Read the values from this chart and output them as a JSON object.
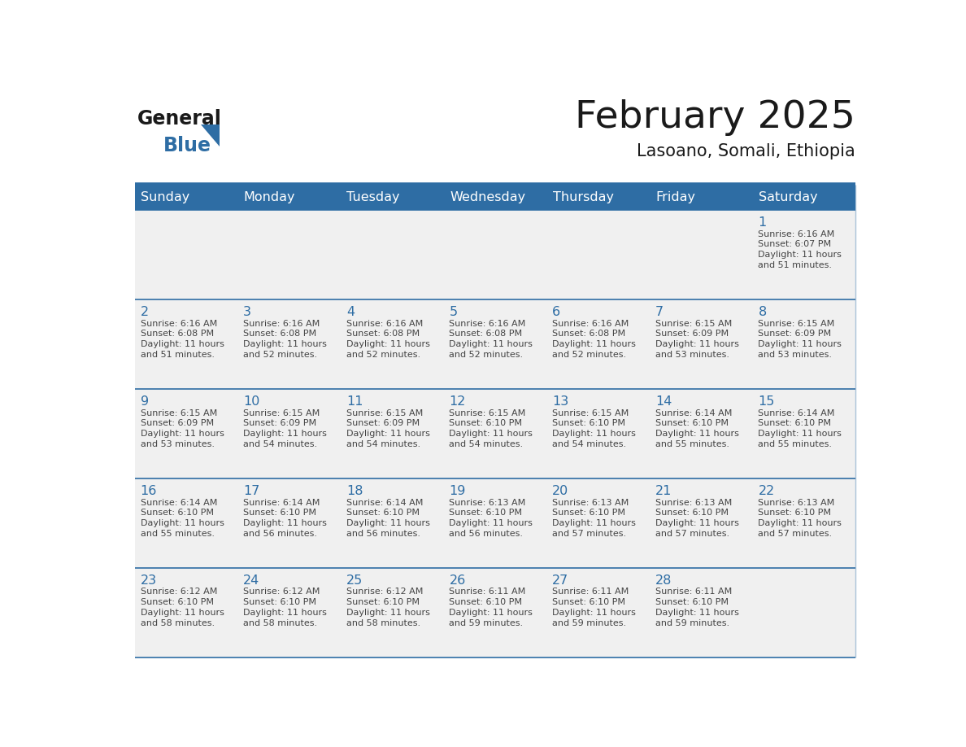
{
  "title": "February 2025",
  "subtitle": "Lasoano, Somali, Ethiopia",
  "days_of_week": [
    "Sunday",
    "Monday",
    "Tuesday",
    "Wednesday",
    "Thursday",
    "Friday",
    "Saturday"
  ],
  "header_bg_color": "#2E6DA4",
  "header_text_color": "#FFFFFF",
  "cell_bg_color": "#F0F0F0",
  "border_color": "#2E6DA4",
  "title_color": "#1a1a1a",
  "subtitle_color": "#1a1a1a",
  "day_num_color": "#2E6DA4",
  "cell_text_color": "#444444",
  "logo_text1_color": "#1a1a1a",
  "logo_text2_color": "#2E6DA4",
  "logo_triangle_color": "#2E6DA4",
  "calendar": [
    [
      null,
      null,
      null,
      null,
      null,
      null,
      {
        "day": 1,
        "sunrise": "6:16 AM",
        "sunset": "6:07 PM",
        "daylight": "11 hours and 51 minutes."
      }
    ],
    [
      {
        "day": 2,
        "sunrise": "6:16 AM",
        "sunset": "6:08 PM",
        "daylight": "11 hours and 51 minutes."
      },
      {
        "day": 3,
        "sunrise": "6:16 AM",
        "sunset": "6:08 PM",
        "daylight": "11 hours and 52 minutes."
      },
      {
        "day": 4,
        "sunrise": "6:16 AM",
        "sunset": "6:08 PM",
        "daylight": "11 hours and 52 minutes."
      },
      {
        "day": 5,
        "sunrise": "6:16 AM",
        "sunset": "6:08 PM",
        "daylight": "11 hours and 52 minutes."
      },
      {
        "day": 6,
        "sunrise": "6:16 AM",
        "sunset": "6:08 PM",
        "daylight": "11 hours and 52 minutes."
      },
      {
        "day": 7,
        "sunrise": "6:15 AM",
        "sunset": "6:09 PM",
        "daylight": "11 hours and 53 minutes."
      },
      {
        "day": 8,
        "sunrise": "6:15 AM",
        "sunset": "6:09 PM",
        "daylight": "11 hours and 53 minutes."
      }
    ],
    [
      {
        "day": 9,
        "sunrise": "6:15 AM",
        "sunset": "6:09 PM",
        "daylight": "11 hours and 53 minutes."
      },
      {
        "day": 10,
        "sunrise": "6:15 AM",
        "sunset": "6:09 PM",
        "daylight": "11 hours and 54 minutes."
      },
      {
        "day": 11,
        "sunrise": "6:15 AM",
        "sunset": "6:09 PM",
        "daylight": "11 hours and 54 minutes."
      },
      {
        "day": 12,
        "sunrise": "6:15 AM",
        "sunset": "6:10 PM",
        "daylight": "11 hours and 54 minutes."
      },
      {
        "day": 13,
        "sunrise": "6:15 AM",
        "sunset": "6:10 PM",
        "daylight": "11 hours and 54 minutes."
      },
      {
        "day": 14,
        "sunrise": "6:14 AM",
        "sunset": "6:10 PM",
        "daylight": "11 hours and 55 minutes."
      },
      {
        "day": 15,
        "sunrise": "6:14 AM",
        "sunset": "6:10 PM",
        "daylight": "11 hours and 55 minutes."
      }
    ],
    [
      {
        "day": 16,
        "sunrise": "6:14 AM",
        "sunset": "6:10 PM",
        "daylight": "11 hours and 55 minutes."
      },
      {
        "day": 17,
        "sunrise": "6:14 AM",
        "sunset": "6:10 PM",
        "daylight": "11 hours and 56 minutes."
      },
      {
        "day": 18,
        "sunrise": "6:14 AM",
        "sunset": "6:10 PM",
        "daylight": "11 hours and 56 minutes."
      },
      {
        "day": 19,
        "sunrise": "6:13 AM",
        "sunset": "6:10 PM",
        "daylight": "11 hours and 56 minutes."
      },
      {
        "day": 20,
        "sunrise": "6:13 AM",
        "sunset": "6:10 PM",
        "daylight": "11 hours and 57 minutes."
      },
      {
        "day": 21,
        "sunrise": "6:13 AM",
        "sunset": "6:10 PM",
        "daylight": "11 hours and 57 minutes."
      },
      {
        "day": 22,
        "sunrise": "6:13 AM",
        "sunset": "6:10 PM",
        "daylight": "11 hours and 57 minutes."
      }
    ],
    [
      {
        "day": 23,
        "sunrise": "6:12 AM",
        "sunset": "6:10 PM",
        "daylight": "11 hours and 58 minutes."
      },
      {
        "day": 24,
        "sunrise": "6:12 AM",
        "sunset": "6:10 PM",
        "daylight": "11 hours and 58 minutes."
      },
      {
        "day": 25,
        "sunrise": "6:12 AM",
        "sunset": "6:10 PM",
        "daylight": "11 hours and 58 minutes."
      },
      {
        "day": 26,
        "sunrise": "6:11 AM",
        "sunset": "6:10 PM",
        "daylight": "11 hours and 59 minutes."
      },
      {
        "day": 27,
        "sunrise": "6:11 AM",
        "sunset": "6:10 PM",
        "daylight": "11 hours and 59 minutes."
      },
      {
        "day": 28,
        "sunrise": "6:11 AM",
        "sunset": "6:10 PM",
        "daylight": "11 hours and 59 minutes."
      },
      null
    ]
  ]
}
